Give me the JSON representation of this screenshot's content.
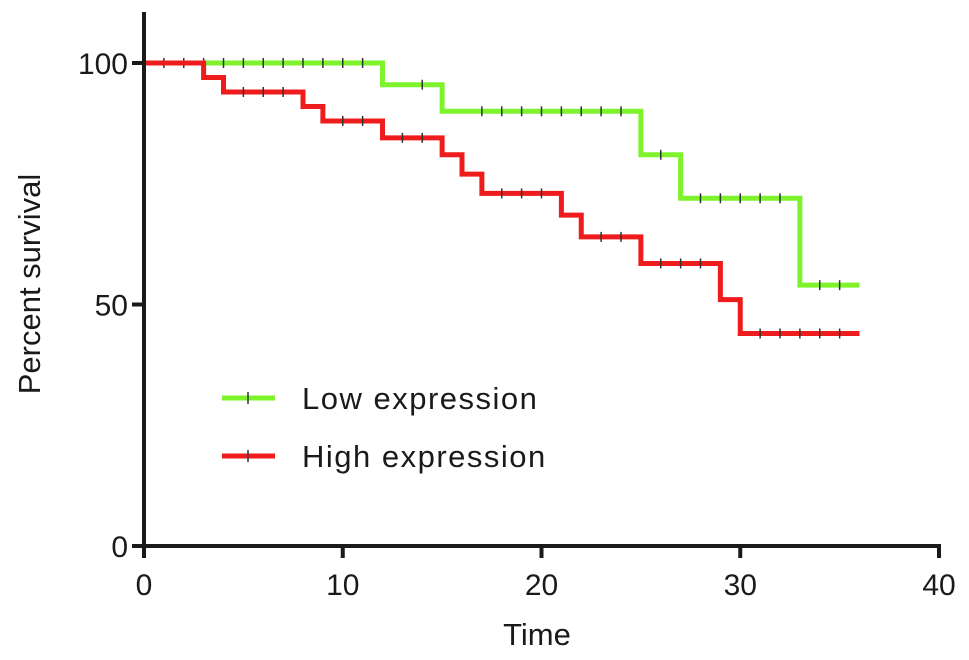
{
  "chart_data": {
    "type": "line",
    "subtype": "kaplan-meier-step",
    "title": "",
    "xlabel": "Time",
    "ylabel": "Percent survival",
    "xlim": [
      0,
      40
    ],
    "ylim": [
      0,
      100
    ],
    "x_ticks": [
      0,
      10,
      20,
      30,
      40
    ],
    "y_ticks": [
      0,
      50,
      100
    ],
    "grid": false,
    "legend_position": "lower-left",
    "series": [
      {
        "name": "Low expression",
        "color": "#7ef22a",
        "steps": [
          [
            0,
            100
          ],
          [
            12,
            95.5
          ],
          [
            15,
            90
          ],
          [
            25,
            81
          ],
          [
            27,
            72
          ],
          [
            33,
            54
          ],
          [
            36,
            54
          ]
        ],
        "censored": [
          [
            1,
            100
          ],
          [
            2,
            100
          ],
          [
            3,
            100
          ],
          [
            4,
            100
          ],
          [
            5,
            100
          ],
          [
            6,
            100
          ],
          [
            7,
            100
          ],
          [
            8,
            100
          ],
          [
            9,
            100
          ],
          [
            10,
            100
          ],
          [
            11,
            100
          ],
          [
            14,
            95.5
          ],
          [
            17,
            90
          ],
          [
            18,
            90
          ],
          [
            19,
            90
          ],
          [
            20,
            90
          ],
          [
            21,
            90
          ],
          [
            22,
            90
          ],
          [
            23,
            90
          ],
          [
            24,
            90
          ],
          [
            26,
            81
          ],
          [
            28,
            72
          ],
          [
            29,
            72
          ],
          [
            30,
            72
          ],
          [
            31,
            72
          ],
          [
            32,
            72
          ],
          [
            34,
            54
          ],
          [
            35,
            54
          ]
        ]
      },
      {
        "name": "High expression",
        "color": "#ee1c1c",
        "steps": [
          [
            0,
            100
          ],
          [
            3,
            97
          ],
          [
            4,
            94
          ],
          [
            8,
            91
          ],
          [
            9,
            88
          ],
          [
            12,
            84.5
          ],
          [
            15,
            81
          ],
          [
            16,
            77
          ],
          [
            17,
            73
          ],
          [
            21,
            68.5
          ],
          [
            22,
            64
          ],
          [
            25,
            58.5
          ],
          [
            29,
            51
          ],
          [
            30,
            44
          ],
          [
            36,
            44
          ]
        ],
        "censored": [
          [
            5,
            94
          ],
          [
            6,
            94
          ],
          [
            7,
            94
          ],
          [
            10,
            88
          ],
          [
            11,
            88
          ],
          [
            13,
            84.5
          ],
          [
            14,
            84.5
          ],
          [
            18,
            73
          ],
          [
            19,
            73
          ],
          [
            20,
            73
          ],
          [
            23,
            64
          ],
          [
            24,
            64
          ],
          [
            26,
            58.5
          ],
          [
            27,
            58.5
          ],
          [
            28,
            58.5
          ],
          [
            31,
            44
          ],
          [
            32,
            44
          ],
          [
            33,
            44
          ],
          [
            34,
            44
          ],
          [
            35,
            44
          ]
        ]
      }
    ]
  }
}
